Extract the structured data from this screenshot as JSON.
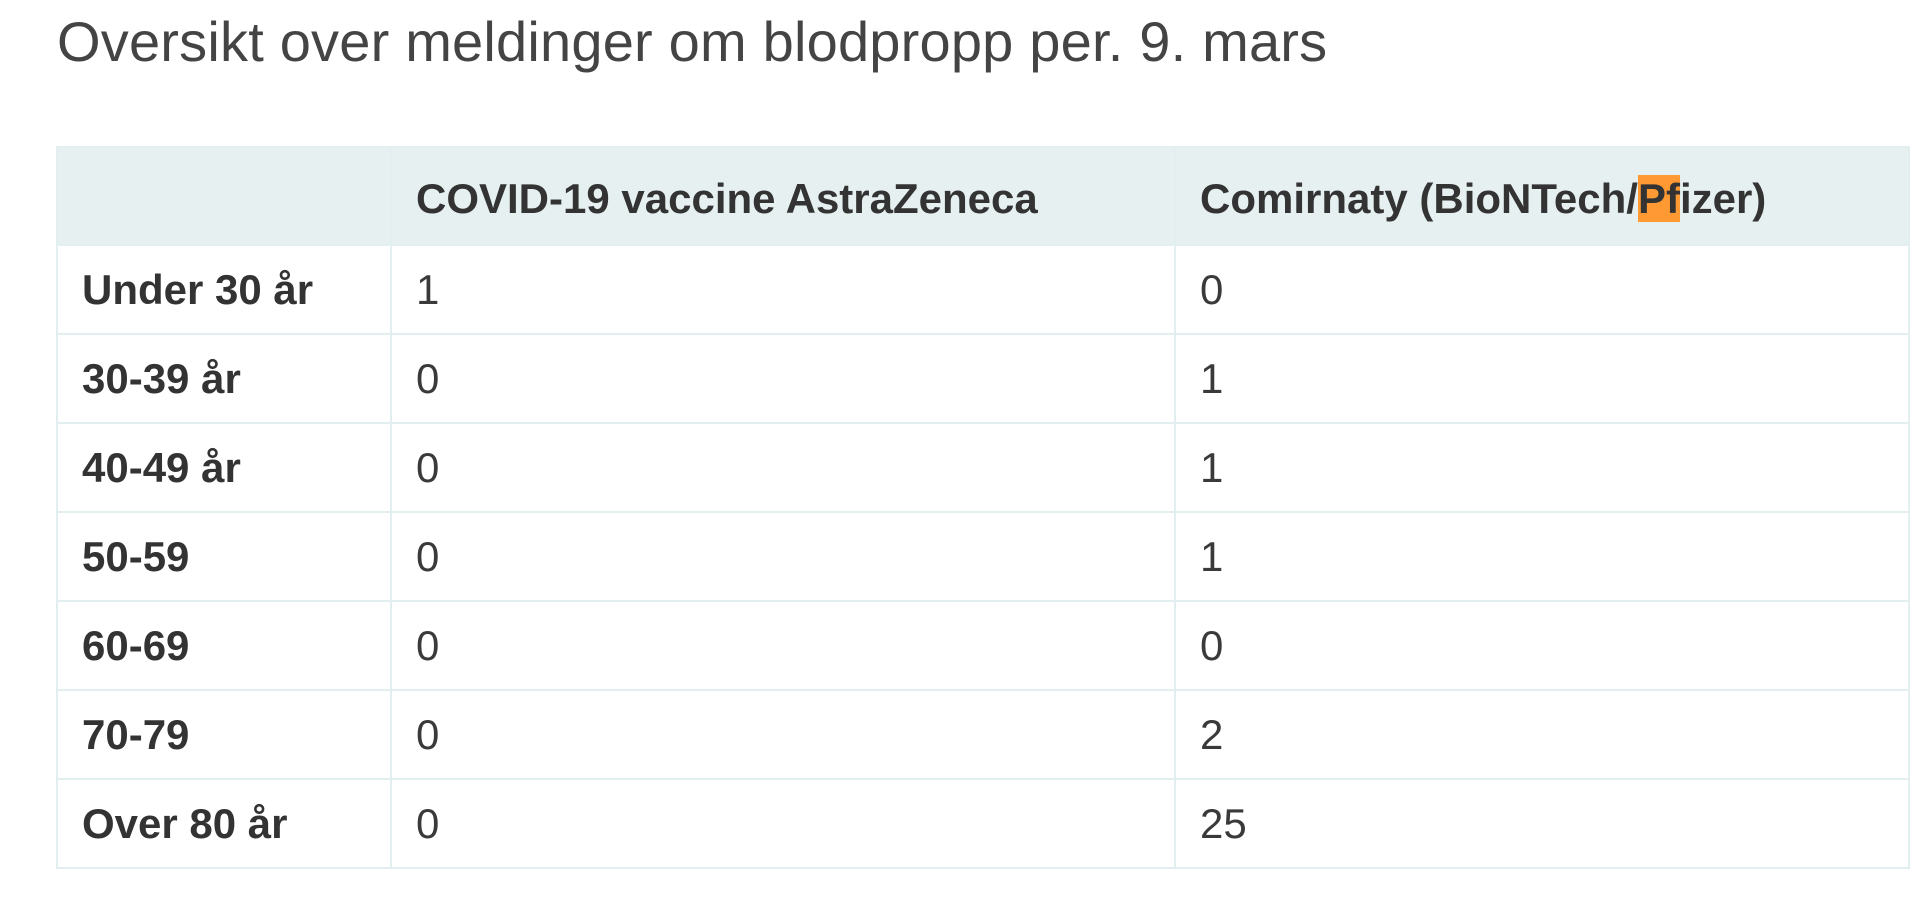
{
  "page": {
    "title": "Oversikt over meldinger om blodpropp per. 9. mars"
  },
  "table": {
    "header": {
      "corner": "",
      "astrazeneca": "COVID-19 vaccine AstraZeneca",
      "pfizer_prefix": "Comirnaty (BioNTech/",
      "pfizer_highlight": "Pf",
      "pfizer_suffix": "izer)"
    },
    "rows": [
      {
        "age": "Under 30 år",
        "astrazeneca": "1",
        "pfizer": "0"
      },
      {
        "age": "30-39 år",
        "astrazeneca": "0",
        "pfizer": "1"
      },
      {
        "age": "40-49 år",
        "astrazeneca": "0",
        "pfizer": "1"
      },
      {
        "age": "50-59",
        "astrazeneca": "0",
        "pfizer": "1"
      },
      {
        "age": "60-69",
        "astrazeneca": "0",
        "pfizer": "0"
      },
      {
        "age": "70-79",
        "astrazeneca": "0",
        "pfizer": "2"
      },
      {
        "age": "Over 80 år",
        "astrazeneca": "0",
        "pfizer": "25"
      }
    ]
  },
  "colors": {
    "header_background": "#e6f0f1",
    "border": "#e3eef0",
    "search_highlight": "#ff9933",
    "text": "#333333"
  }
}
